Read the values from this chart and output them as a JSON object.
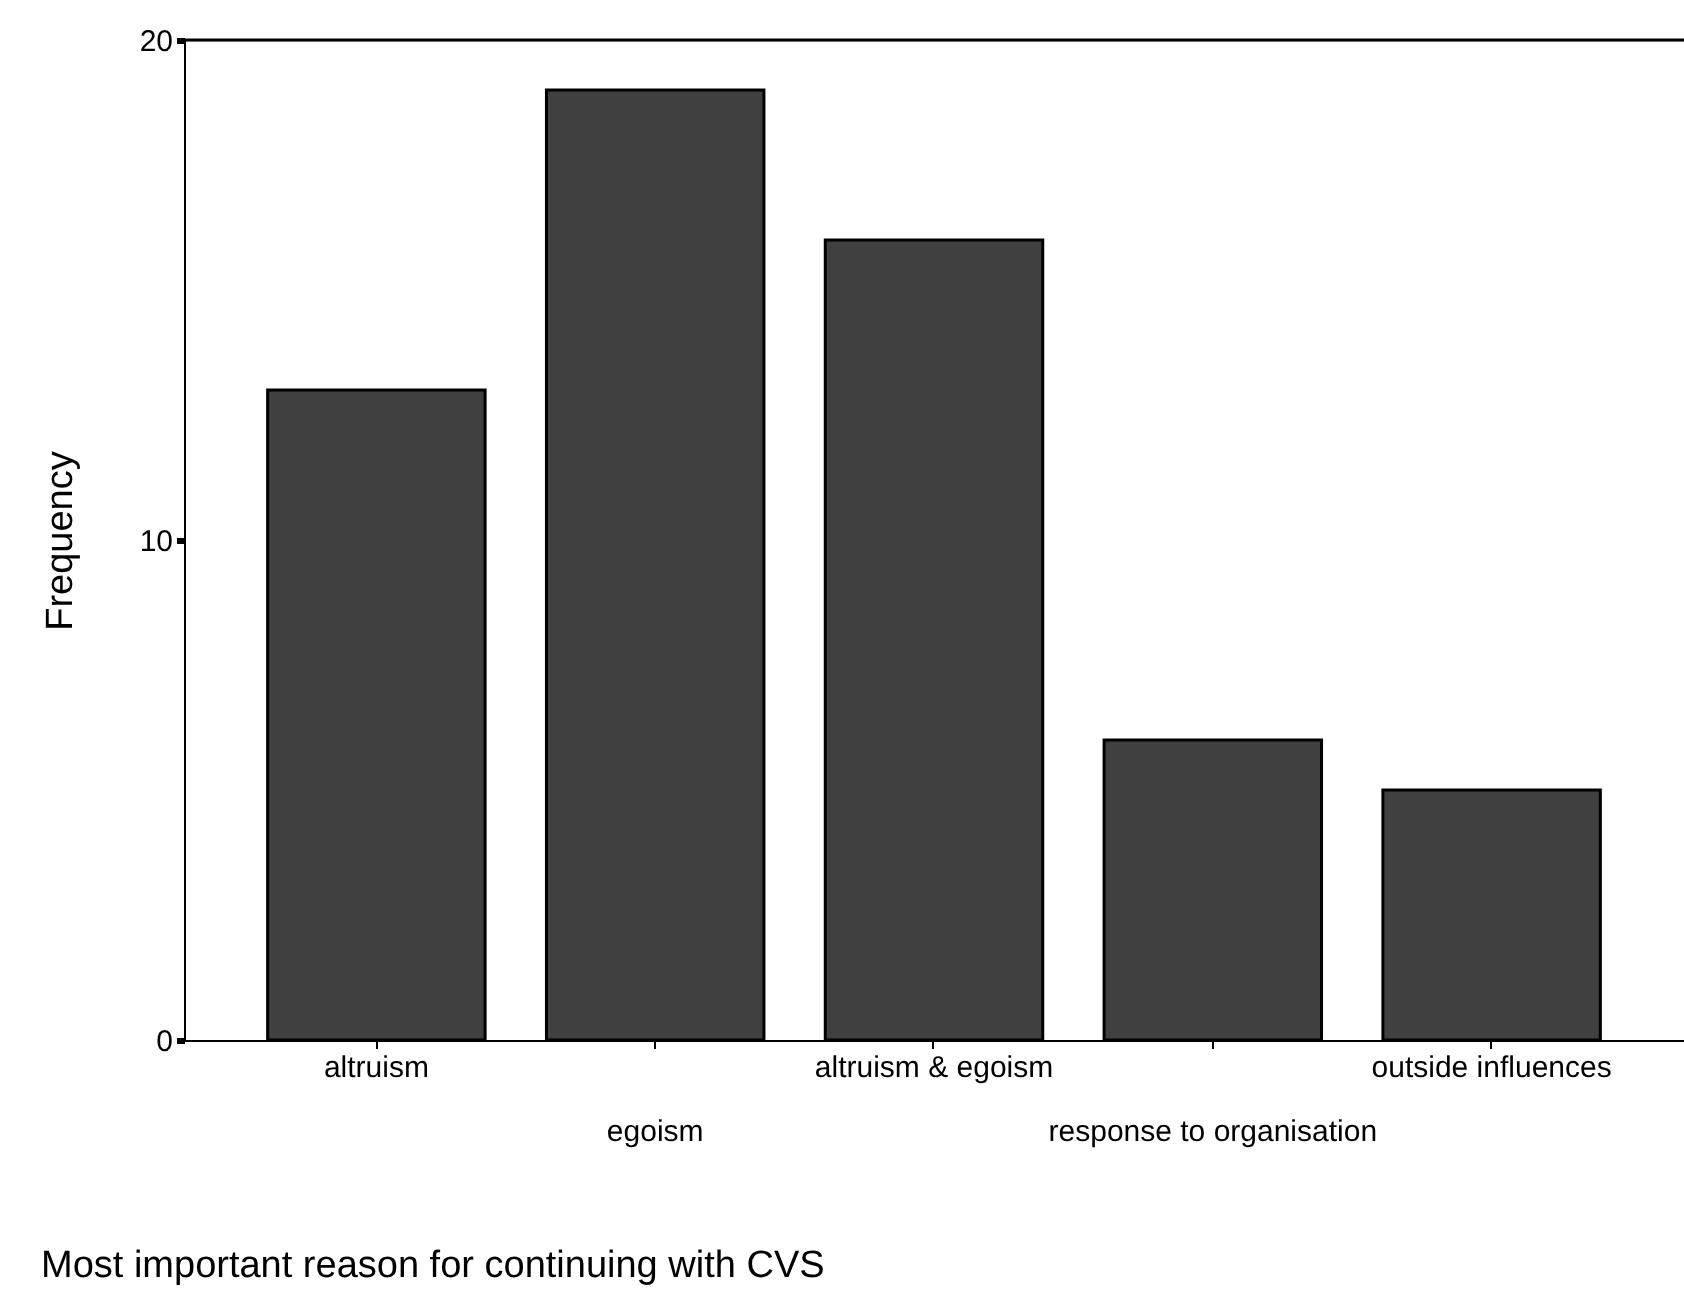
{
  "chart_data": {
    "type": "bar",
    "categories": [
      "altruism",
      "egoism",
      "altruism & egoism",
      "response to organisation",
      "outside influences"
    ],
    "values": [
      13,
      19,
      16,
      6,
      5
    ],
    "color": "#404040",
    "xlabel": "Most important reason for continuing with CVS",
    "ylabel": "Frequency",
    "ylim": [
      0,
      20
    ],
    "yticks": [
      0,
      10,
      20
    ],
    "grid": false
  }
}
